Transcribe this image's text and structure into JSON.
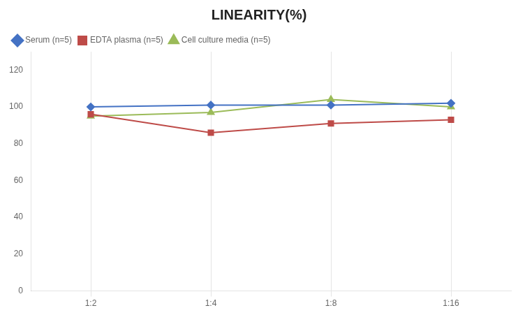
{
  "chart_data": {
    "type": "line",
    "title": "LINEARITY(%)",
    "categories": [
      "1:2",
      "1:4",
      "1:8",
      "1:16"
    ],
    "series": [
      {
        "name": "Serum (n=5)",
        "color": "#4472C4",
        "marker": "diamond",
        "values": [
          100,
          101,
          101,
          102
        ]
      },
      {
        "name": "EDTA plasma (n=5)",
        "color": "#BE4B48",
        "marker": "square",
        "values": [
          96,
          86,
          91,
          93
        ]
      },
      {
        "name": "Cell culture media (n=5)",
        "color": "#9BBB59",
        "marker": "triangle",
        "values": [
          95,
          97,
          104,
          100
        ]
      }
    ],
    "ylim": [
      0,
      130
    ],
    "yticks": [
      0,
      20,
      40,
      60,
      80,
      100,
      120
    ],
    "grid": "x",
    "legend": "top"
  }
}
